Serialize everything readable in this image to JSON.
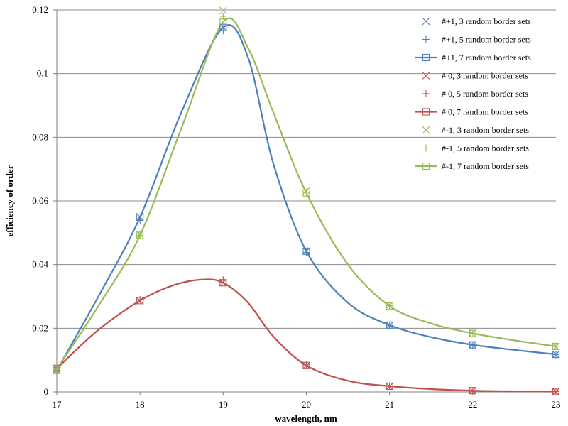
{
  "chart_data": {
    "type": "line",
    "xlabel": "wavelength, nm",
    "ylabel": "efficiency of order",
    "xlim": [
      17,
      23
    ],
    "ylim": [
      0,
      0.12
    ],
    "x_ticks": [
      "17",
      "18",
      "19",
      "20",
      "21",
      "22",
      "23"
    ],
    "y_ticks": [
      "0",
      "0.02",
      "0.04",
      "0.06",
      "0.08",
      "0.1",
      "0.12"
    ],
    "grid": "horizontal",
    "legend_position": "top-right",
    "x": [
      17,
      18,
      19,
      20,
      21,
      22,
      23
    ],
    "series": [
      {
        "name": "#+1, 3 random border sets",
        "marker": "x",
        "line": false,
        "color": "#4f81bd",
        "values": [
          0.0068,
          0.055,
          0.1145,
          0.0442,
          0.021,
          0.0148,
          0.0118
        ]
      },
      {
        "name": "#+1, 5 random border sets",
        "marker": "+",
        "line": false,
        "color": "#4f81bd",
        "values": [
          0.0069,
          0.054,
          0.1135,
          0.0438,
          0.0208,
          0.0147,
          0.0117
        ]
      },
      {
        "name": "#+1, 7 random border sets",
        "marker": "square",
        "line": true,
        "color": "#4f81bd",
        "values": [
          0.0068,
          0.0549,
          0.1145,
          0.0442,
          0.021,
          0.0148,
          0.0118
        ]
      },
      {
        "name": "# 0, 3 random border sets",
        "marker": "x",
        "line": false,
        "color": "#c0504d",
        "values": [
          0.0074,
          0.0287,
          0.0343,
          0.0083,
          0.0018,
          0.0004,
          0.0001
        ]
      },
      {
        "name": "# 0, 5 random border sets",
        "marker": "+",
        "line": false,
        "color": "#c0504d",
        "values": [
          0.0074,
          0.029,
          0.0352,
          0.0085,
          0.0019,
          0.0004,
          0.0001
        ]
      },
      {
        "name": "# 0, 7 random border sets",
        "marker": "square",
        "line": true,
        "color": "#c0504d",
        "values": [
          0.0074,
          0.0287,
          0.0343,
          0.0083,
          0.0018,
          0.0004,
          0.0001
        ]
      },
      {
        "name": "#-1, 3 random border sets",
        "marker": "x",
        "line": false,
        "color": "#9bbb59",
        "values": [
          0.0072,
          0.0495,
          0.1198,
          0.0632,
          0.0272,
          0.0185,
          0.0143
        ]
      },
      {
        "name": "#-1, 5 random border sets",
        "marker": "+",
        "line": false,
        "color": "#9bbb59",
        "values": [
          0.0072,
          0.0493,
          0.118,
          0.0628,
          0.0271,
          0.0184,
          0.0143
        ]
      },
      {
        "name": "#-1, 7 random border sets",
        "marker": "square",
        "line": true,
        "color": "#9bbb59",
        "values": [
          0.0072,
          0.0492,
          0.1162,
          0.0625,
          0.027,
          0.0184,
          0.0143
        ]
      }
    ],
    "smooth_curves": [
      {
        "series": "#+1, 7 random border sets",
        "color": "#4f81bd",
        "points": [
          [
            17,
            0.0068
          ],
          [
            17.5,
            0.03
          ],
          [
            18,
            0.0549
          ],
          [
            18.5,
            0.088
          ],
          [
            19,
            0.1145
          ],
          [
            19.3,
            0.105
          ],
          [
            19.6,
            0.072
          ],
          [
            20,
            0.0442
          ],
          [
            20.5,
            0.028
          ],
          [
            21,
            0.021
          ],
          [
            21.5,
            0.0172
          ],
          [
            22,
            0.0148
          ],
          [
            22.5,
            0.0132
          ],
          [
            23,
            0.0118
          ]
        ]
      },
      {
        "series": "# 0, 7 random border sets",
        "color": "#c0504d",
        "points": [
          [
            17,
            0.0074
          ],
          [
            17.5,
            0.0195
          ],
          [
            18,
            0.0287
          ],
          [
            18.4,
            0.0335
          ],
          [
            18.75,
            0.0353
          ],
          [
            19,
            0.0343
          ],
          [
            19.3,
            0.028
          ],
          [
            19.6,
            0.0175
          ],
          [
            20,
            0.0083
          ],
          [
            20.5,
            0.0035
          ],
          [
            21,
            0.0018
          ],
          [
            21.5,
            0.0009
          ],
          [
            22,
            0.0004
          ],
          [
            22.5,
            0.0002
          ],
          [
            23,
            0.0001
          ]
        ]
      },
      {
        "series": "#-1, 7 random border sets",
        "color": "#9bbb59",
        "points": [
          [
            17,
            0.0072
          ],
          [
            17.5,
            0.027
          ],
          [
            18,
            0.0492
          ],
          [
            18.5,
            0.083
          ],
          [
            19,
            0.1162
          ],
          [
            19.3,
            0.108
          ],
          [
            19.6,
            0.088
          ],
          [
            20,
            0.0625
          ],
          [
            20.5,
            0.04
          ],
          [
            21,
            0.027
          ],
          [
            21.5,
            0.0215
          ],
          [
            22,
            0.0184
          ],
          [
            22.5,
            0.0162
          ],
          [
            23,
            0.0143
          ]
        ]
      }
    ]
  }
}
